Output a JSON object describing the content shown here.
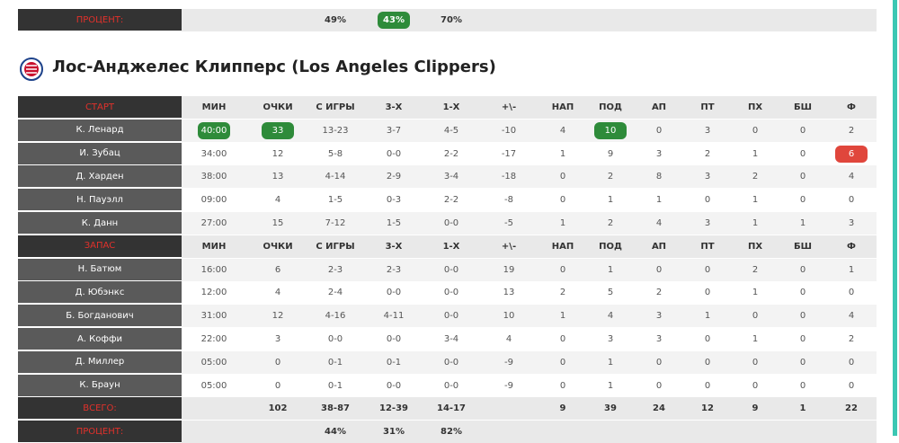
{
  "top_table": {
    "percent": {
      "label": "ПРОЦЕНТ:",
      "cells": [
        null,
        null,
        "49%",
        {
          "text": "43%",
          "badge": "#2e8b3a"
        },
        "70%",
        null,
        null,
        null,
        null,
        null,
        null,
        null,
        null
      ]
    }
  },
  "team": {
    "name": "Лос-Анджелес Клипперс (Los Angeles Clippers)",
    "starters": {
      "label": "СТАРТ",
      "columns": [
        "МИН",
        "ОЧКИ",
        "С ИГРЫ",
        "3-Х",
        "1-Х",
        "+\\-",
        "НАП",
        "ПОД",
        "АП",
        "ПТ",
        "ПХ",
        "БШ",
        "Ф"
      ],
      "rows": [
        {
          "name": "К. Ленард",
          "cells": [
            {
              "text": "40:00",
              "badge": "#2e8b3a"
            },
            {
              "text": "33",
              "badge": "#2e8b3a"
            },
            "13-23",
            "3-7",
            "4-5",
            "-10",
            "4",
            {
              "text": "10",
              "badge": "#2e8b3a"
            },
            "0",
            "3",
            "0",
            "0",
            "2"
          ]
        },
        {
          "name": "И. Зубац",
          "cells": [
            "34:00",
            "12",
            "5-8",
            "0-0",
            "2-2",
            "-17",
            "1",
            "9",
            "3",
            "2",
            "1",
            "0",
            {
              "text": "6",
              "badge": "#e0463c"
            }
          ]
        },
        {
          "name": "Д. Харден",
          "cells": [
            "38:00",
            "13",
            "4-14",
            "2-9",
            "3-4",
            "-18",
            "0",
            "2",
            "8",
            "3",
            "2",
            "0",
            "4"
          ]
        },
        {
          "name": "Н. Пауэлл",
          "cells": [
            "09:00",
            "4",
            "1-5",
            "0-3",
            "2-2",
            "-8",
            "0",
            "1",
            "1",
            "0",
            "1",
            "0",
            "0"
          ]
        },
        {
          "name": "К. Данн",
          "cells": [
            "27:00",
            "15",
            "7-12",
            "1-5",
            "0-0",
            "-5",
            "1",
            "2",
            "4",
            "3",
            "1",
            "1",
            "3"
          ]
        }
      ]
    },
    "bench": {
      "label": "ЗАПАС",
      "columns": [
        "МИН",
        "ОЧКИ",
        "С ИГРЫ",
        "3-Х",
        "1-Х",
        "+\\-",
        "НАП",
        "ПОД",
        "АП",
        "ПТ",
        "ПХ",
        "БШ",
        "Ф"
      ],
      "rows": [
        {
          "name": "Н. Батюм",
          "cells": [
            "16:00",
            "6",
            "2-3",
            "2-3",
            "0-0",
            "19",
            "0",
            "1",
            "0",
            "0",
            "2",
            "0",
            "1"
          ]
        },
        {
          "name": "Д. Юбэнкс",
          "cells": [
            "12:00",
            "4",
            "2-4",
            "0-0",
            "0-0",
            "13",
            "2",
            "5",
            "2",
            "0",
            "1",
            "0",
            "0"
          ]
        },
        {
          "name": "Б. Богданович",
          "cells": [
            "31:00",
            "12",
            "4-16",
            "4-11",
            "0-0",
            "10",
            "1",
            "4",
            "3",
            "1",
            "0",
            "0",
            "4"
          ]
        },
        {
          "name": "А. Коффи",
          "cells": [
            "22:00",
            "3",
            "0-0",
            "0-0",
            "3-4",
            "4",
            "0",
            "3",
            "3",
            "0",
            "1",
            "0",
            "2"
          ]
        },
        {
          "name": "Д. Миллер",
          "cells": [
            "05:00",
            "0",
            "0-1",
            "0-1",
            "0-0",
            "-9",
            "0",
            "1",
            "0",
            "0",
            "0",
            "0",
            "0"
          ]
        },
        {
          "name": "К. Браун",
          "cells": [
            "05:00",
            "0",
            "0-1",
            "0-0",
            "0-0",
            "-9",
            "0",
            "1",
            "0",
            "0",
            "0",
            "0",
            "0"
          ]
        }
      ]
    },
    "totals": {
      "label": "ВСЕГО:",
      "cells": [
        null,
        "102",
        "38-87",
        "12-39",
        "14-17",
        null,
        "9",
        "39",
        "24",
        "12",
        "9",
        "1",
        "22"
      ]
    },
    "percent": {
      "label": "ПРОЦЕНТ:",
      "cells": [
        null,
        null,
        "44%",
        "31%",
        "82%",
        null,
        null,
        null,
        null,
        null,
        null,
        null,
        null
      ]
    }
  }
}
